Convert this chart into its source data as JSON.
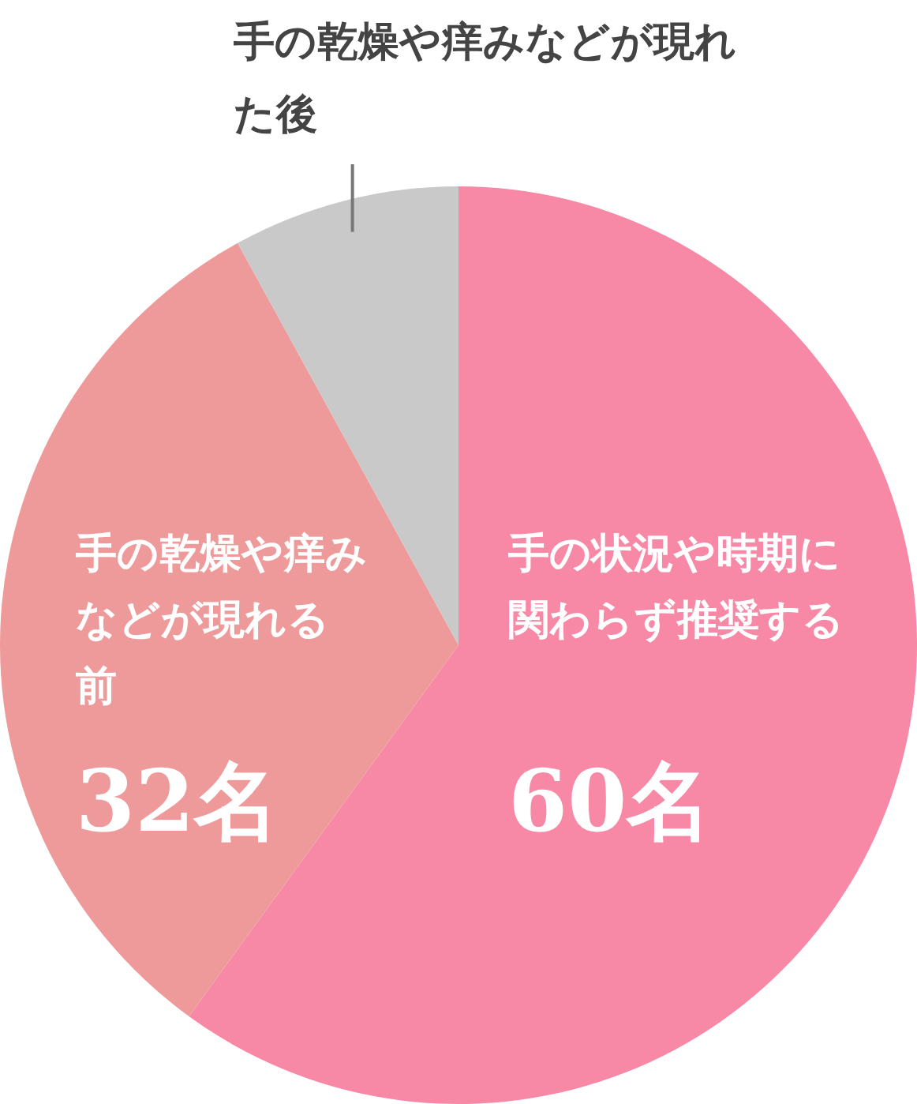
{
  "chart_data": {
    "type": "pie",
    "categories": [
      "手の状況や時期に関わらず推奨する",
      "手の乾燥や痒みなどが現れる前",
      "手の乾燥や痒みなどが現れた後"
    ],
    "values": [
      60,
      32,
      8
    ],
    "value_labels": [
      "60名",
      "32名",
      null
    ],
    "colors": [
      "#f788a6",
      "#ef9a9a",
      "#c9c9c9"
    ],
    "legend": false
  }
}
